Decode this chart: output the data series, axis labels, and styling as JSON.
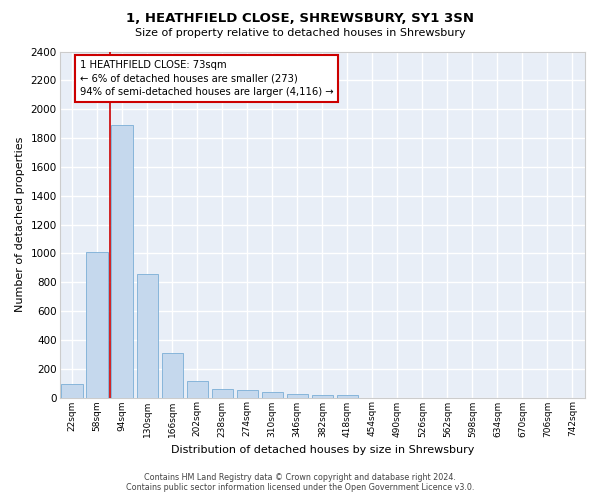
{
  "title": "1, HEATHFIELD CLOSE, SHREWSBURY, SY1 3SN",
  "subtitle": "Size of property relative to detached houses in Shrewsbury",
  "xlabel": "Distribution of detached houses by size in Shrewsbury",
  "ylabel": "Number of detached properties",
  "bar_color": "#c5d8ed",
  "bar_edge_color": "#7aaed6",
  "background_color": "#e8eef7",
  "grid_color": "#ffffff",
  "categories": [
    "22sqm",
    "58sqm",
    "94sqm",
    "130sqm",
    "166sqm",
    "202sqm",
    "238sqm",
    "274sqm",
    "310sqm",
    "346sqm",
    "382sqm",
    "418sqm",
    "454sqm",
    "490sqm",
    "526sqm",
    "562sqm",
    "598sqm",
    "634sqm",
    "670sqm",
    "706sqm",
    "742sqm"
  ],
  "values": [
    95,
    1010,
    1890,
    860,
    310,
    115,
    60,
    50,
    40,
    25,
    18,
    15,
    0,
    0,
    0,
    0,
    0,
    0,
    0,
    0,
    0
  ],
  "ylim": [
    0,
    2400
  ],
  "yticks": [
    0,
    200,
    400,
    600,
    800,
    1000,
    1200,
    1400,
    1600,
    1800,
    2000,
    2200,
    2400
  ],
  "property_line_x": 1.5,
  "property_line_color": "#cc0000",
  "annotation_text": "1 HEATHFIELD CLOSE: 73sqm\n← 6% of detached houses are smaller (273)\n94% of semi-detached houses are larger (4,116) →",
  "annotation_box_color": "#cc0000",
  "footer_line1": "Contains HM Land Registry data © Crown copyright and database right 2024.",
  "footer_line2": "Contains public sector information licensed under the Open Government Licence v3.0."
}
